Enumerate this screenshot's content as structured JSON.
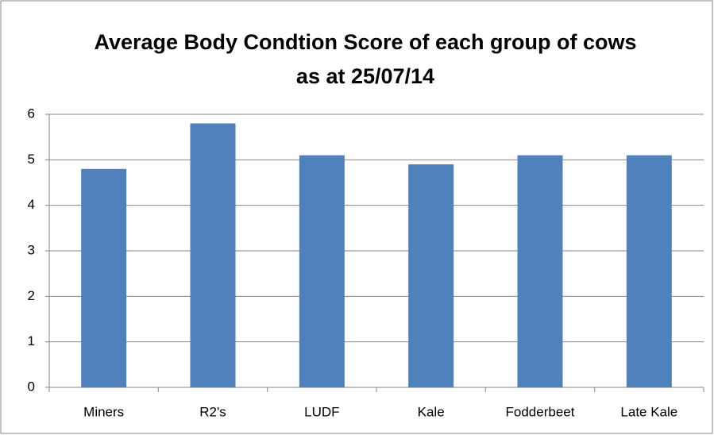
{
  "chart_data": {
    "type": "bar",
    "title": "Average Body Condtion Score of each group of cows as at 25/07/14",
    "categories": [
      "Miners",
      "R2's",
      "LUDF",
      "Kale",
      "Fodderbeet",
      "Late Kale"
    ],
    "values": [
      4.8,
      5.8,
      5.1,
      4.9,
      5.1,
      5.1
    ],
    "color": "#4f81bd",
    "ylim": [
      0,
      6
    ],
    "yticks": [
      0,
      1,
      2,
      3,
      4,
      5,
      6
    ],
    "grid": true
  }
}
